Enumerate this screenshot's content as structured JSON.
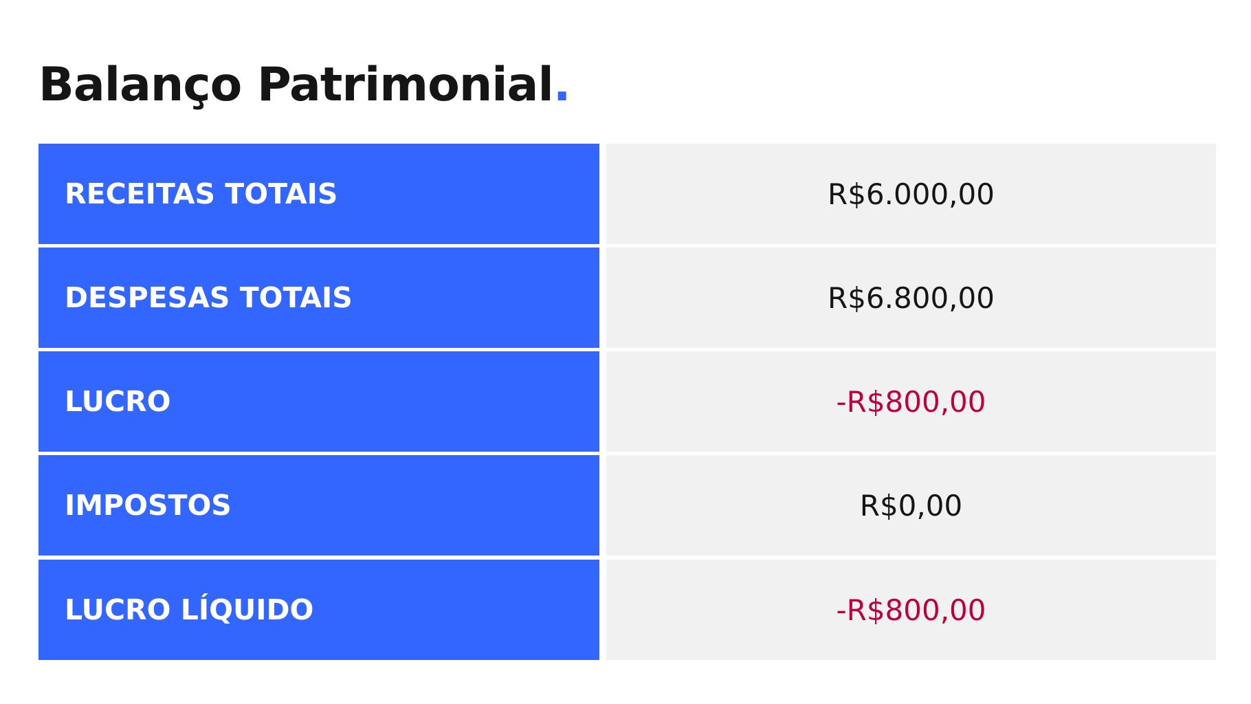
{
  "title": {
    "text": "Balanço Patrimonial",
    "dot": "."
  },
  "colors": {
    "accent": "#3366ff",
    "negative": "#c0003c",
    "value_bg": "#f1f1f1"
  },
  "rows": [
    {
      "label": "RECEITAS TOTAIS",
      "value": "R$6.000,00",
      "negative": false
    },
    {
      "label": "DESPESAS TOTAIS",
      "value": "R$6.800,00",
      "negative": false
    },
    {
      "label": "LUCRO",
      "value": "-R$800,00",
      "negative": true
    },
    {
      "label": "IMPOSTOS",
      "value": "R$0,00",
      "negative": false
    },
    {
      "label": "LUCRO LÍQUIDO",
      "value": "-R$800,00",
      "negative": true
    }
  ]
}
